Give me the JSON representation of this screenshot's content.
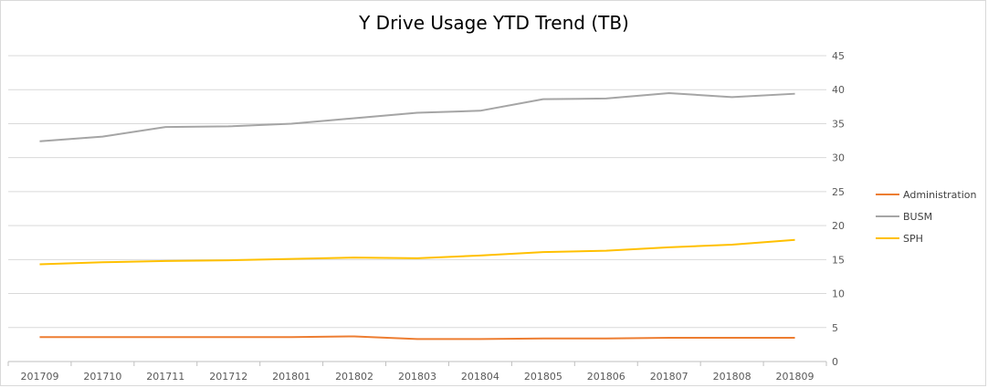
{
  "chart_data": {
    "type": "line",
    "title": "Y Drive Usage YTD Trend (TB)",
    "x": [
      "201709",
      "201710",
      "201711",
      "201712",
      "201801",
      "201802",
      "201803",
      "201804",
      "201805",
      "201806",
      "201807",
      "201808",
      "201809"
    ],
    "ylim": [
      0,
      45
    ],
    "yticks": [
      "0",
      "5",
      "10",
      "15",
      "20",
      "25",
      "30",
      "35",
      "40",
      "45"
    ],
    "y_axis_side": "right",
    "grid": true,
    "legend_position": "right",
    "series": [
      {
        "name": "Administration",
        "color": "#ED7D31",
        "values": [
          3.6,
          3.6,
          3.6,
          3.6,
          3.6,
          3.7,
          3.3,
          3.3,
          3.4,
          3.4,
          3.5,
          3.5,
          3.5
        ]
      },
      {
        "name": "BUSM",
        "color": "#A5A5A5",
        "values": [
          32.4,
          33.1,
          34.5,
          34.6,
          35.0,
          35.8,
          36.6,
          36.9,
          38.6,
          38.7,
          39.5,
          38.9,
          39.4
        ]
      },
      {
        "name": "SPH",
        "color": "#FFC000",
        "values": [
          14.3,
          14.6,
          14.8,
          14.9,
          15.1,
          15.3,
          15.2,
          15.6,
          16.1,
          16.3,
          16.8,
          17.2,
          17.9
        ]
      }
    ]
  }
}
